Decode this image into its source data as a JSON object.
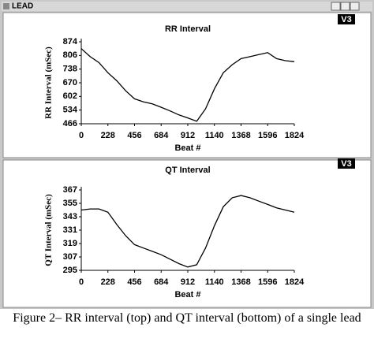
{
  "window_title": "LEAD",
  "caption": "Figure 2– RR interval (top) and QT interval (bottom) of a single lead",
  "chart_data": [
    {
      "type": "line",
      "title": "RR Interval",
      "panel_tag": "V3",
      "x_label": "Beat #",
      "y_label": "RR Interval (mSec)",
      "x": [
        0,
        76,
        152,
        228,
        304,
        380,
        456,
        532,
        608,
        684,
        760,
        836,
        912,
        988,
        1064,
        1140,
        1216,
        1292,
        1368,
        1444,
        1520,
        1596,
        1672,
        1748,
        1824
      ],
      "values": [
        840,
        800,
        770,
        720,
        680,
        630,
        590,
        575,
        565,
        548,
        530,
        510,
        495,
        478,
        540,
        640,
        720,
        760,
        790,
        800,
        810,
        820,
        790,
        780,
        775
      ],
      "color": "#000000",
      "xlim": [
        0,
        1824
      ],
      "xticks": [
        0,
        228,
        456,
        684,
        912,
        1140,
        1368,
        1596,
        1824
      ],
      "ylim": [
        466,
        874
      ],
      "yticks": [
        466,
        534,
        602,
        670,
        738,
        806,
        874
      ]
    },
    {
      "type": "line",
      "title": "QT Interval",
      "panel_tag": "V3",
      "x_label": "Beat #",
      "y_label": "QT Interval (mSec)",
      "x": [
        0,
        76,
        152,
        228,
        304,
        380,
        456,
        532,
        608,
        684,
        760,
        836,
        912,
        988,
        1064,
        1140,
        1216,
        1292,
        1368,
        1444,
        1520,
        1596,
        1672,
        1748,
        1824
      ],
      "values": [
        349,
        350,
        350,
        347,
        336,
        326,
        318,
        315,
        312,
        309,
        305,
        301,
        298,
        300,
        315,
        335,
        352,
        360,
        362,
        360,
        357,
        354,
        351,
        349,
        347
      ],
      "color": "#000000",
      "xlim": [
        0,
        1824
      ],
      "xticks": [
        0,
        228,
        456,
        684,
        912,
        1140,
        1368,
        1596,
        1824
      ],
      "ylim": [
        295,
        367
      ],
      "yticks": [
        295,
        307,
        319,
        331,
        343,
        355,
        367
      ]
    }
  ]
}
